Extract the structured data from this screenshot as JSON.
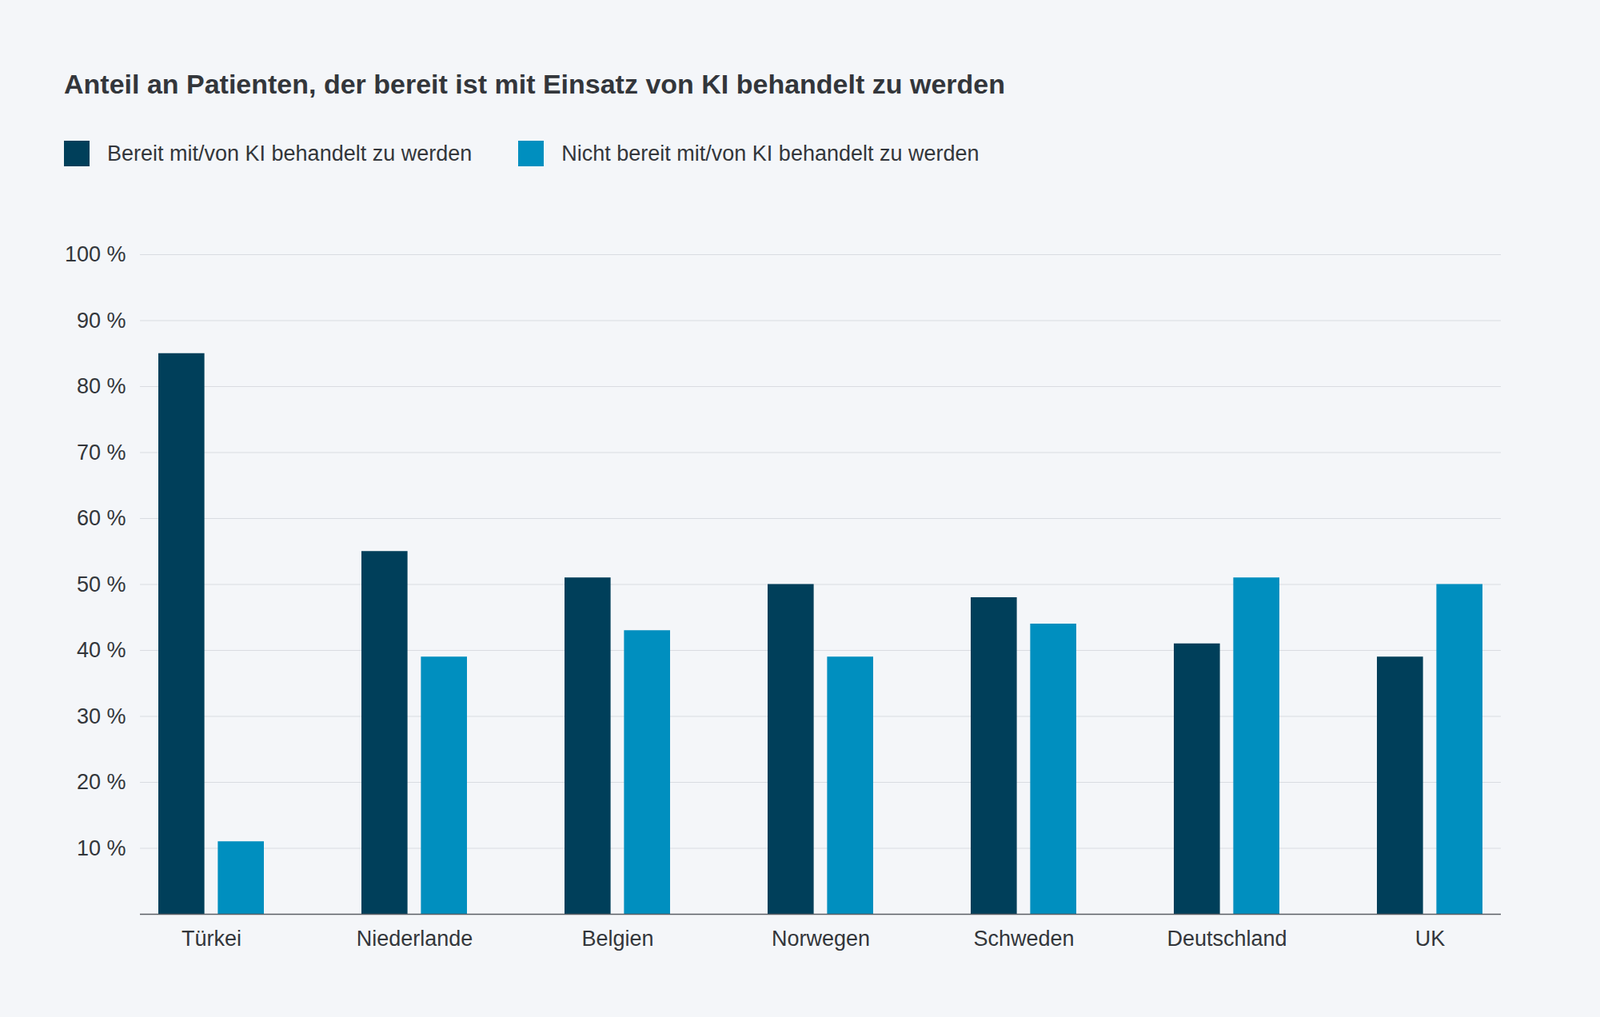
{
  "chart_data": {
    "type": "bar",
    "title": "Anteil an Patienten, der bereit ist mit Einsatz von KI behandelt zu werden",
    "categories": [
      "Türkei",
      "Niederlande",
      "Belgien",
      "Norwegen",
      "Schweden",
      "Deutschland",
      "UK"
    ],
    "series": [
      {
        "name": "Bereit mit/von KI behandelt zu werden",
        "color": "#003f5a",
        "values": [
          85,
          55,
          51,
          50,
          48,
          41,
          39
        ]
      },
      {
        "name": "Nicht bereit mit/von KI behandelt zu werden",
        "color": "#008fbf",
        "values": [
          11,
          39,
          43,
          39,
          44,
          51,
          50
        ]
      }
    ],
    "ylim": [
      0,
      100
    ],
    "yticks": [
      {
        "value": 10,
        "label": "10 %"
      },
      {
        "value": 20,
        "label": "20 %"
      },
      {
        "value": 30,
        "label": "30 %"
      },
      {
        "value": 40,
        "label": "40 %"
      },
      {
        "value": 50,
        "label": "50 %"
      },
      {
        "value": 60,
        "label": "60 %"
      },
      {
        "value": 70,
        "label": "70 %"
      },
      {
        "value": 80,
        "label": "80 %"
      },
      {
        "value": 90,
        "label": "90 %"
      },
      {
        "value": 100,
        "label": "100 %"
      }
    ],
    "grid": true,
    "legend": "top-left"
  }
}
